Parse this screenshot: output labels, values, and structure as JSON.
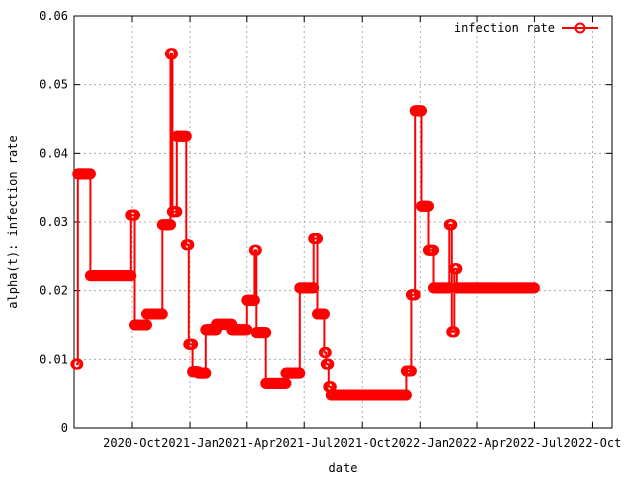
{
  "chart_data": {
    "type": "line",
    "xlabel": "date",
    "ylabel": "alpha(t): infection rate",
    "ylim": [
      0,
      0.06
    ],
    "xlim": [
      "2020-07-01",
      "2022-11-01"
    ],
    "grid": true,
    "legend": "top-right",
    "x_tick_labels": [
      "2020-Oct",
      "2021-Jan",
      "2021-Apr",
      "2021-Jul",
      "2021-Oct",
      "2022-Jan",
      "2022-Apr",
      "2022-Jul",
      "2022-Oct"
    ],
    "x_tick_dates": [
      "2020-10-01",
      "2021-01-01",
      "2021-04-01",
      "2021-07-01",
      "2021-10-01",
      "2022-01-01",
      "2022-04-01",
      "2022-07-01",
      "2022-10-01"
    ],
    "y_ticks": [
      0,
      0.01,
      0.02,
      0.03,
      0.04,
      0.05,
      0.06
    ],
    "y_tick_labels": [
      "0",
      "0.01",
      "0.02",
      "0.03",
      "0.04",
      "0.05",
      "0.06"
    ],
    "color": "#ff0000",
    "series": [
      {
        "name": "infection rate",
        "points": [
          [
            "2020-07-04",
            0.0093
          ],
          [
            "2020-07-07",
            0.0093
          ],
          [
            "2020-07-07",
            0.037
          ],
          [
            "2020-07-27",
            0.037
          ],
          [
            "2020-07-27",
            0.0222
          ],
          [
            "2020-09-29",
            0.0222
          ],
          [
            "2020-09-29",
            0.031
          ],
          [
            "2020-10-05",
            0.031
          ],
          [
            "2020-10-05",
            0.015
          ],
          [
            "2020-10-24",
            0.015
          ],
          [
            "2020-10-24",
            0.0166
          ],
          [
            "2020-11-18",
            0.0166
          ],
          [
            "2020-11-18",
            0.0296
          ],
          [
            "2020-12-01",
            0.0296
          ],
          [
            "2020-12-01",
            0.0545
          ],
          [
            "2020-12-04",
            0.0545
          ],
          [
            "2020-12-04",
            0.0315
          ],
          [
            "2020-12-11",
            0.0315
          ],
          [
            "2020-12-11",
            0.0425
          ],
          [
            "2020-12-26",
            0.0425
          ],
          [
            "2020-12-26",
            0.0267
          ],
          [
            "2020-12-30",
            0.0267
          ],
          [
            "2020-12-30",
            0.0122
          ],
          [
            "2021-01-05",
            0.0122
          ],
          [
            "2021-01-05",
            0.0082
          ],
          [
            "2021-01-14",
            0.0082
          ],
          [
            "2021-01-14",
            0.008
          ],
          [
            "2021-01-26",
            0.008
          ],
          [
            "2021-01-26",
            0.0143
          ],
          [
            "2021-02-12",
            0.0143
          ],
          [
            "2021-02-12",
            0.0151
          ],
          [
            "2021-03-08",
            0.0151
          ],
          [
            "2021-03-08",
            0.0143
          ],
          [
            "2021-04-01",
            0.0143
          ],
          [
            "2021-04-01",
            0.0186
          ],
          [
            "2021-04-13",
            0.0186
          ],
          [
            "2021-04-13",
            0.0259
          ],
          [
            "2021-04-16",
            0.0259
          ],
          [
            "2021-04-16",
            0.0139
          ],
          [
            "2021-05-01",
            0.0139
          ],
          [
            "2021-05-01",
            0.0065
          ],
          [
            "2021-06-02",
            0.0065
          ],
          [
            "2021-06-02",
            0.008
          ],
          [
            "2021-06-24",
            0.008
          ],
          [
            "2021-06-24",
            0.0204
          ],
          [
            "2021-07-16",
            0.0204
          ],
          [
            "2021-07-16",
            0.0276
          ],
          [
            "2021-07-22",
            0.0276
          ],
          [
            "2021-07-22",
            0.0166
          ],
          [
            "2021-08-02",
            0.0166
          ],
          [
            "2021-08-02",
            0.011
          ],
          [
            "2021-08-05",
            0.011
          ],
          [
            "2021-08-05",
            0.0093
          ],
          [
            "2021-08-09",
            0.0093
          ],
          [
            "2021-08-09",
            0.006
          ],
          [
            "2021-08-13",
            0.006
          ],
          [
            "2021-08-13",
            0.0048
          ],
          [
            "2021-12-10",
            0.0048
          ],
          [
            "2021-12-10",
            0.0083
          ],
          [
            "2021-12-18",
            0.0083
          ],
          [
            "2021-12-18",
            0.0194
          ],
          [
            "2021-12-24",
            0.0194
          ],
          [
            "2021-12-24",
            0.0462
          ],
          [
            "2022-01-03",
            0.0462
          ],
          [
            "2022-01-03",
            0.0323
          ],
          [
            "2022-01-14",
            0.0323
          ],
          [
            "2022-01-14",
            0.0259
          ],
          [
            "2022-01-22",
            0.0259
          ],
          [
            "2022-01-22",
            0.0204
          ],
          [
            "2022-02-16",
            0.0204
          ],
          [
            "2022-02-16",
            0.0296
          ],
          [
            "2022-02-20",
            0.0296
          ],
          [
            "2022-02-20",
            0.014
          ],
          [
            "2022-02-24",
            0.014
          ],
          [
            "2022-02-24",
            0.0232
          ],
          [
            "2022-02-28",
            0.0232
          ],
          [
            "2022-02-28",
            0.0204
          ],
          [
            "2022-07-01",
            0.0204
          ]
        ]
      }
    ]
  }
}
